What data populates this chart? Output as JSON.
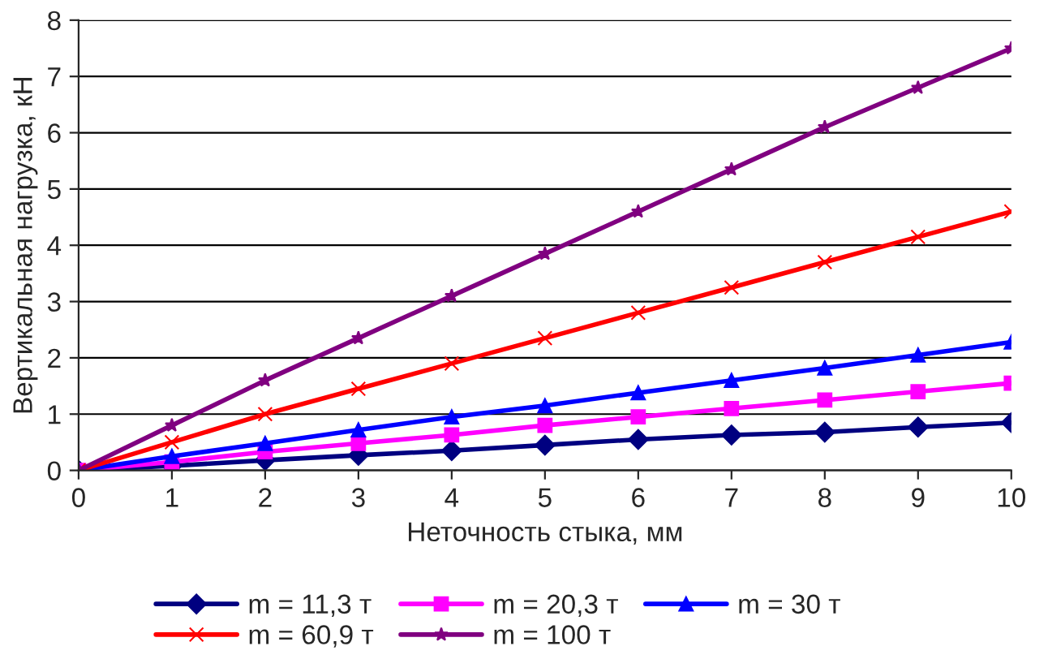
{
  "chart_data": {
    "type": "line",
    "xlabel": "Неточность стыка, мм",
    "ylabel": "Вертикальная нагрузка, кН",
    "x": [
      0,
      1,
      2,
      3,
      4,
      5,
      6,
      7,
      8,
      9,
      10
    ],
    "xlim": [
      0,
      10
    ],
    "xticks": [
      0,
      1,
      2,
      3,
      4,
      5,
      6,
      7,
      8,
      9,
      10
    ],
    "ylim": [
      0,
      8
    ],
    "yticks": [
      0,
      1,
      2,
      3,
      4,
      5,
      6,
      7,
      8
    ],
    "grid": "y",
    "legend": "bottom",
    "series": [
      {
        "name": "m = 11,3 т",
        "color": "#000080",
        "marker": "diamond",
        "values": [
          0,
          0.08,
          0.18,
          0.27,
          0.35,
          0.45,
          0.55,
          0.63,
          0.68,
          0.77,
          0.85
        ]
      },
      {
        "name": "m = 20,3 т",
        "color": "#ff00ff",
        "marker": "square",
        "values": [
          0,
          0.15,
          0.33,
          0.48,
          0.63,
          0.8,
          0.95,
          1.1,
          1.25,
          1.4,
          1.55
        ]
      },
      {
        "name": "m = 30 т",
        "color": "#0000ff",
        "marker": "triangle",
        "values": [
          0,
          0.25,
          0.48,
          0.72,
          0.95,
          1.15,
          1.38,
          1.6,
          1.82,
          2.05,
          2.28
        ]
      },
      {
        "name": "m = 60,9 т",
        "color": "#ff0000",
        "marker": "cross",
        "values": [
          0,
          0.5,
          1.0,
          1.45,
          1.9,
          2.35,
          2.8,
          3.25,
          3.7,
          4.15,
          4.6
        ]
      },
      {
        "name": "m = 100 т",
        "color": "#800080",
        "marker": "star",
        "values": [
          0,
          0.8,
          1.6,
          2.35,
          3.1,
          3.85,
          4.6,
          5.35,
          6.1,
          6.8,
          7.5
        ]
      }
    ]
  }
}
